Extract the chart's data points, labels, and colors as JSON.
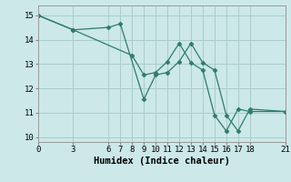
{
  "title": "",
  "xlabel": "Humidex (Indice chaleur)",
  "ylabel": "",
  "background_color": "#cce8e8",
  "line_color": "#2e7b6e",
  "grid_color": "#aacccc",
  "xlim": [
    0,
    21
  ],
  "ylim": [
    9.8,
    15.4
  ],
  "xticks": [
    0,
    3,
    6,
    7,
    8,
    9,
    10,
    11,
    12,
    13,
    14,
    15,
    16,
    17,
    18,
    21
  ],
  "yticks": [
    10,
    11,
    12,
    13,
    14,
    15
  ],
  "series1_x": [
    0,
    3,
    6,
    7,
    9,
    10,
    11,
    12,
    13,
    14,
    15,
    16,
    17,
    18,
    21
  ],
  "series1_y": [
    15.0,
    14.4,
    14.5,
    14.65,
    11.55,
    12.55,
    12.65,
    13.1,
    13.85,
    13.05,
    12.75,
    10.9,
    10.25,
    11.15,
    11.05
  ],
  "series2_x": [
    0,
    3,
    8,
    9,
    10,
    11,
    12,
    13,
    14,
    15,
    16,
    17,
    18,
    21
  ],
  "series2_y": [
    15.0,
    14.4,
    13.35,
    12.55,
    12.65,
    13.1,
    13.85,
    13.05,
    12.75,
    10.9,
    10.25,
    11.15,
    11.05,
    11.05
  ],
  "marker": "D",
  "marker_size": 2.5,
  "linewidth": 0.9,
  "tick_fontsize": 6.5
}
